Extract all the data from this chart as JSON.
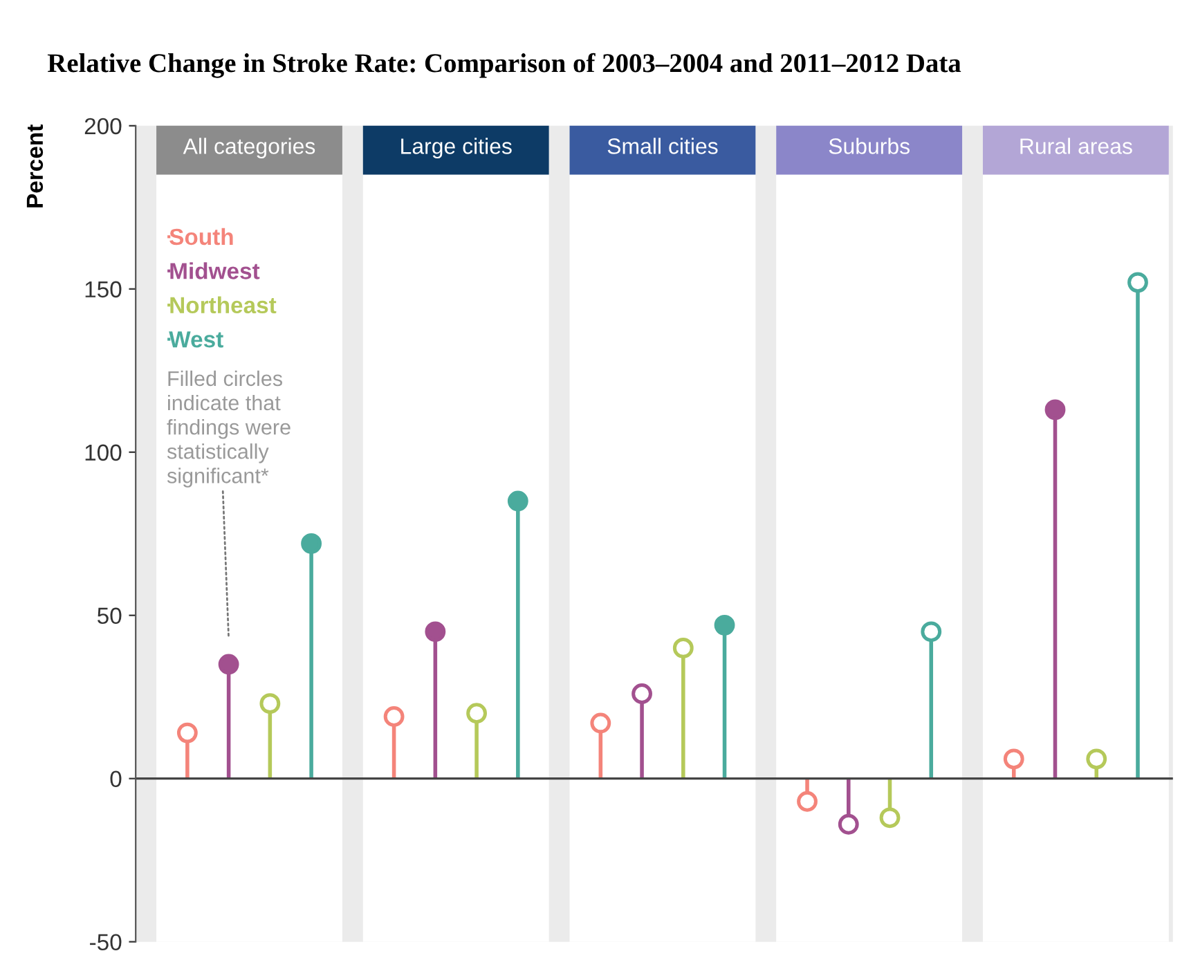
{
  "chart_data": {
    "type": "lollipop",
    "title": "Relative Change in Stroke Rate: Comparison of 2003–2004 and 2011–2012 Data",
    "ylabel": "Percent",
    "categories": [
      "All categories",
      "Large cities",
      "Small cities",
      "Suburbs",
      "Rural areas"
    ],
    "series": [
      {
        "name": "South",
        "color": "#f4847a",
        "values": [
          14,
          19,
          17,
          -7,
          6
        ],
        "colors": [
          "#ffffff",
          "#ffffff",
          "#ffffff",
          "#ffffff",
          "#ffffff"
        ]
      },
      {
        "name": "Midwest",
        "color": "#a2508f",
        "values": [
          35,
          45,
          26,
          -14,
          113
        ],
        "colors": [
          "#a2508f",
          "#a2508f",
          "#ffffff",
          "#ffffff",
          "#a2508f"
        ]
      },
      {
        "name": "Northeast",
        "color": "#b5c95a",
        "values": [
          23,
          20,
          40,
          -12,
          6
        ],
        "colors": [
          "#ffffff",
          "#ffffff",
          "#ffffff",
          "#ffffff",
          "#ffffff"
        ]
      },
      {
        "name": "West",
        "color": "#4aab9d",
        "values": [
          72,
          85,
          47,
          45,
          152
        ],
        "colors": [
          "#4aab9d",
          "#4aab9d",
          "#4aab9d",
          "#ffffff",
          "#ffffff"
        ]
      }
    ],
    "annotations": [
      "Filled circles\nindicate that\nfindings were\nstatistically\nsignificant*"
    ],
    "ref_lines": [
      {
        "axis": "y",
        "value": 0,
        "color": "#444444"
      }
    ],
    "ylim": [
      -50,
      200
    ],
    "yticks": [
      -50,
      0,
      50,
      100,
      150,
      200
    ],
    "legend": "top left",
    "grid": false
  }
}
